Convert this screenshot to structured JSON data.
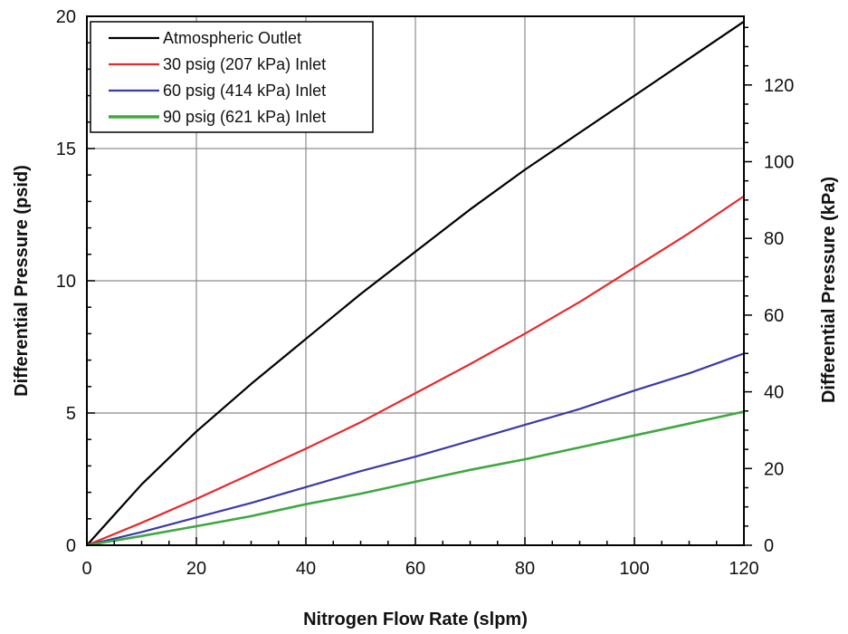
{
  "chart_data": {
    "type": "line",
    "title": "",
    "xlabel": "Nitrogen Flow Rate (slpm)",
    "ylabel": "Differential Pressure (psid)",
    "y2label": "Differential Pressure (kPa)",
    "xlim": [
      0,
      120
    ],
    "ylim": [
      0,
      20
    ],
    "y2lim": [
      0,
      137.9
    ],
    "xticks": [
      0,
      20,
      40,
      60,
      80,
      100,
      120
    ],
    "yticks": [
      0,
      5,
      10,
      15,
      20
    ],
    "y2ticks": [
      0,
      20,
      40,
      60,
      80,
      100,
      120
    ],
    "grid": true,
    "legend_position": "top-left",
    "series": [
      {
        "name": "Atmospheric Outlet",
        "color": "#000000",
        "x": [
          0,
          10,
          20,
          30,
          40,
          50,
          60,
          70,
          80,
          90,
          100,
          110,
          120
        ],
        "y": [
          0,
          2.3,
          4.3,
          6.1,
          7.8,
          9.5,
          11.1,
          12.7,
          14.2,
          15.6,
          17.0,
          18.4,
          19.8
        ]
      },
      {
        "name": "30 psig (207 kPa) Inlet",
        "color": "#e8282a",
        "x": [
          0,
          10,
          20,
          30,
          40,
          50,
          60,
          70,
          80,
          90,
          100,
          110,
          120
        ],
        "y": [
          0,
          0.85,
          1.75,
          2.7,
          3.65,
          4.65,
          5.75,
          6.85,
          8.0,
          9.2,
          10.5,
          11.8,
          13.2
        ]
      },
      {
        "name": "60 psig (414 kPa) Inlet",
        "color": "#3a3aa8",
        "x": [
          0,
          10,
          20,
          30,
          40,
          50,
          60,
          70,
          80,
          90,
          100,
          110,
          120
        ],
        "y": [
          0,
          0.5,
          1.05,
          1.6,
          2.2,
          2.8,
          3.35,
          3.95,
          4.55,
          5.15,
          5.85,
          6.5,
          7.25
        ]
      },
      {
        "name": "90 psig (621 kPa) Inlet",
        "color": "#3fa83f",
        "x": [
          0,
          10,
          20,
          30,
          40,
          50,
          60,
          70,
          80,
          90,
          100,
          110,
          120
        ],
        "y": [
          0,
          0.35,
          0.72,
          1.1,
          1.55,
          1.95,
          2.4,
          2.85,
          3.25,
          3.7,
          4.15,
          4.6,
          5.05
        ]
      }
    ]
  }
}
